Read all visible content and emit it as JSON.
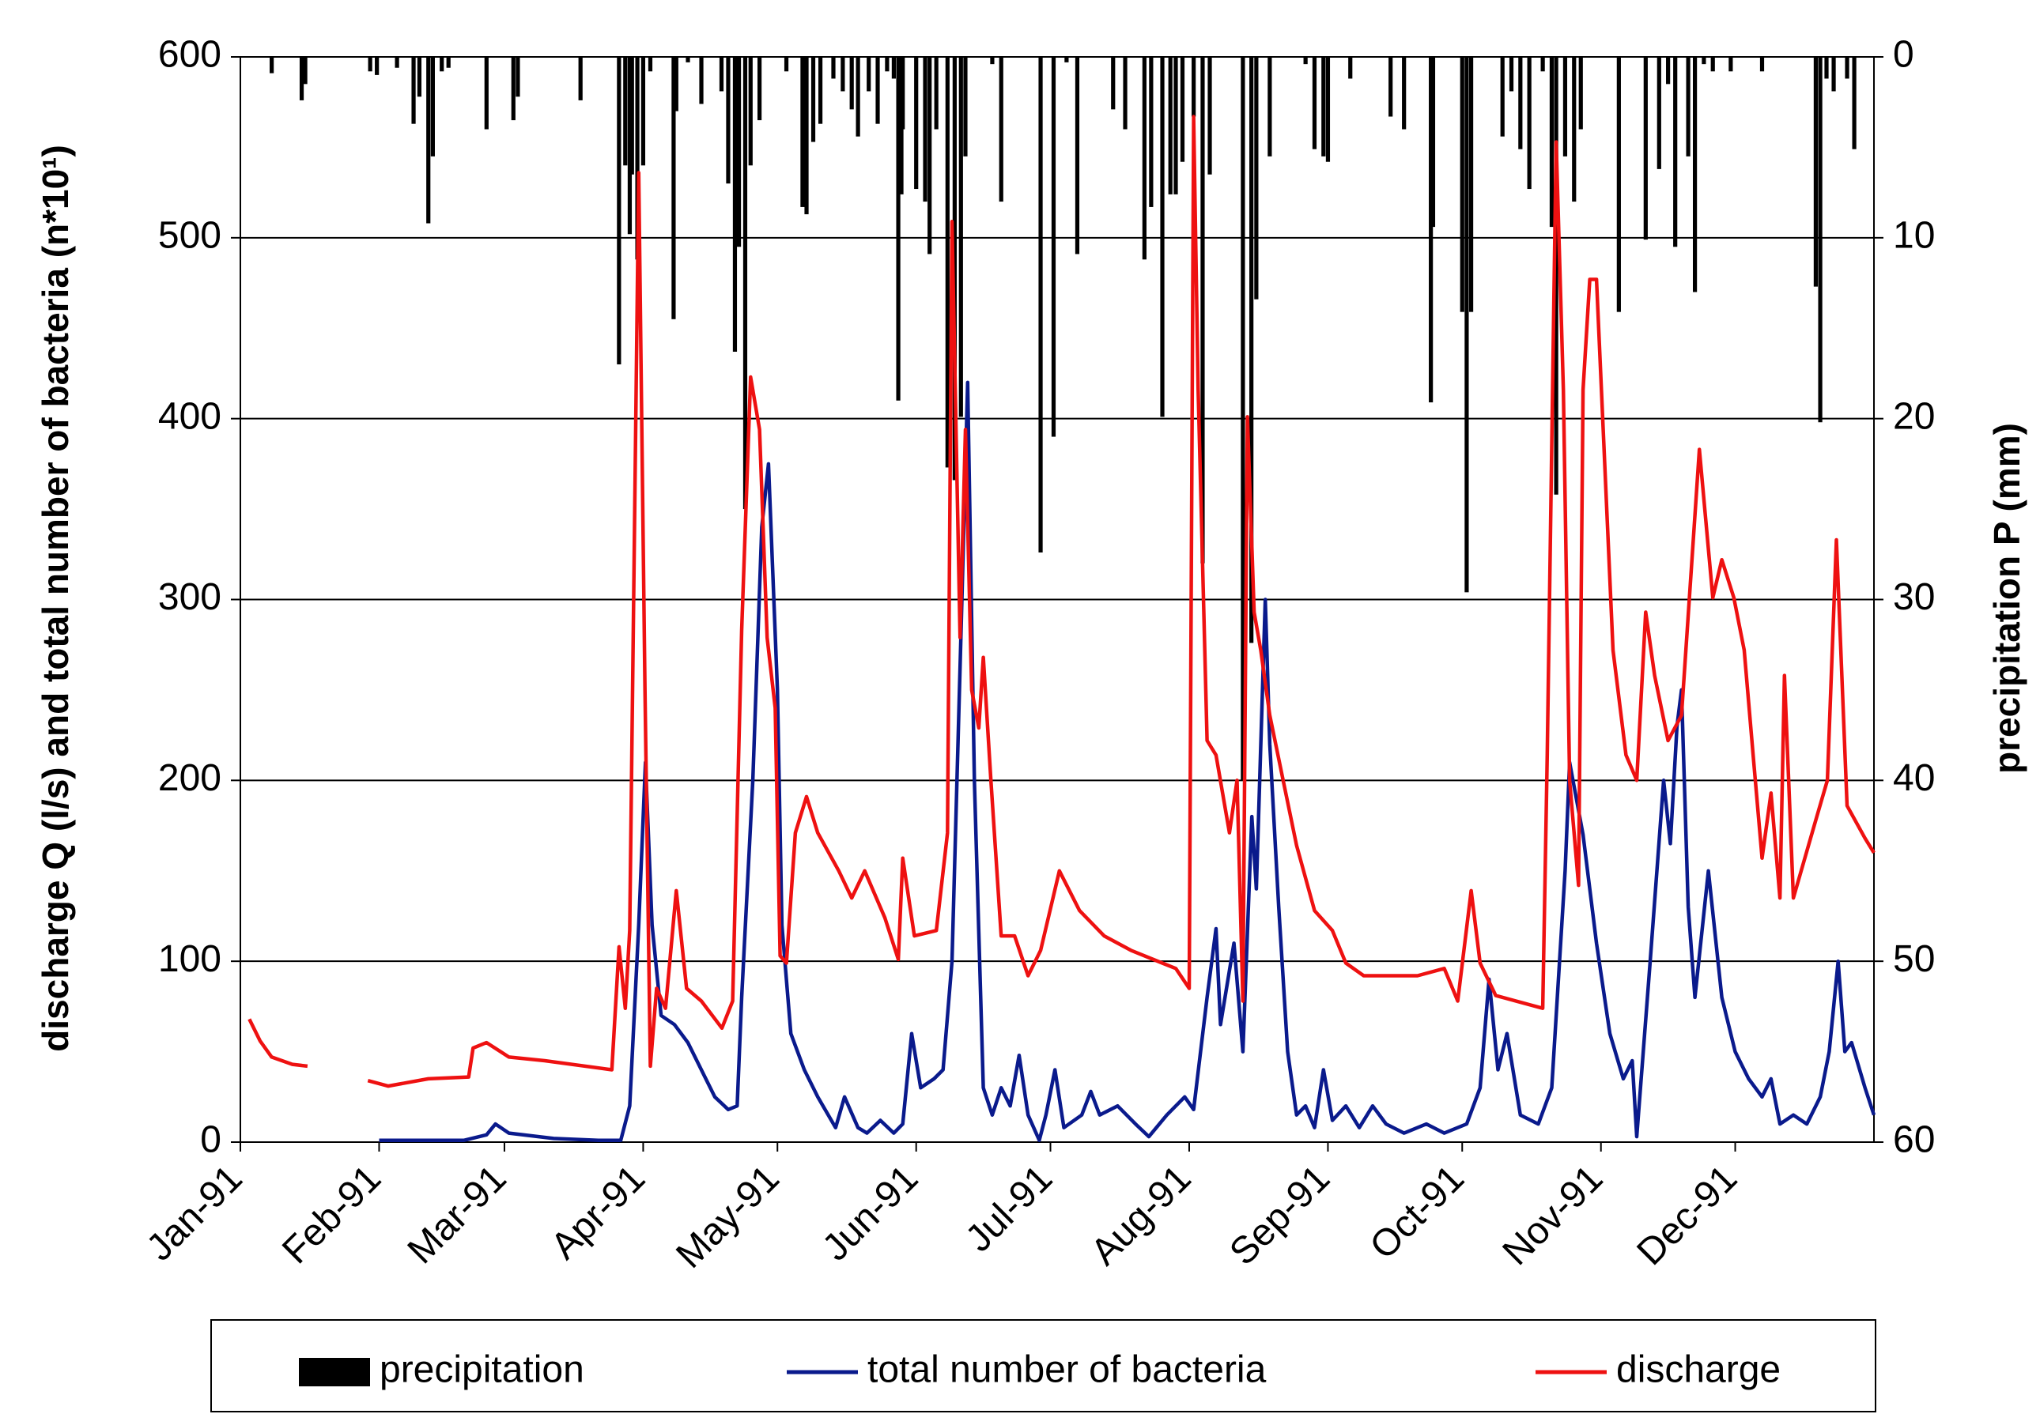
{
  "chart_data": {
    "type": "combo",
    "y_label": "discharge Q (l/s) and total number of bacteria (n*10¹)",
    "y2_label": "precipitation P (mm)",
    "xlim": [
      0,
      365
    ],
    "xticks": [
      {
        "value": 0,
        "label": "Jan-91"
      },
      {
        "value": 31,
        "label": "Feb-91"
      },
      {
        "value": 59,
        "label": "Mar-91"
      },
      {
        "value": 90,
        "label": "Apr-91"
      },
      {
        "value": 120,
        "label": "May-91"
      },
      {
        "value": 151,
        "label": "Jun-91"
      },
      {
        "value": 181,
        "label": "Jul-91"
      },
      {
        "value": 212,
        "label": "Aug-91"
      },
      {
        "value": 243,
        "label": "Sep-91"
      },
      {
        "value": 273,
        "label": "Oct-91"
      },
      {
        "value": 304,
        "label": "Nov-91"
      },
      {
        "value": 334,
        "label": "Dec-91"
      }
    ],
    "ylim": [
      0,
      600
    ],
    "yticks": [
      0,
      100,
      200,
      300,
      400,
      500,
      600
    ],
    "y2lim": [
      60,
      0
    ],
    "y2ticks": [
      0,
      10,
      20,
      30,
      40,
      50,
      60
    ],
    "grid": true,
    "legend": "bottom",
    "series": [
      {
        "name": "precipitation",
        "type": "bar",
        "axis": "y2",
        "color": "#000000",
        "x": [
          7,
          13.7,
          14.5,
          29,
          30.5,
          35,
          38.7,
          40,
          42,
          43,
          45,
          46.5,
          55,
          61,
          62,
          76,
          84.6,
          86,
          87,
          87.5,
          88.7,
          90,
          91.6,
          96.8,
          97.4,
          100,
          103,
          107.5,
          109,
          110.5,
          111.4,
          112.8,
          114,
          116,
          122,
          125.6,
          126.5,
          128,
          129.6,
          132.5,
          134.6,
          136.6,
          138,
          140.4,
          142.4,
          144.5,
          146,
          147,
          147.7,
          148,
          151,
          153,
          154,
          155.5,
          158,
          159.6,
          161,
          162,
          168,
          170,
          178.8,
          181.7,
          184.6,
          187,
          195,
          197.7,
          202,
          203.5,
          206,
          207.8,
          209,
          210.5,
          213,
          215,
          216.6,
          224,
          225.9,
          227,
          230,
          238,
          240,
          242,
          243,
          248,
          257,
          260,
          266,
          266.5,
          273,
          274,
          275,
          282,
          284,
          286,
          288,
          291,
          293,
          294,
          296,
          298,
          299.5,
          308,
          314,
          317,
          319,
          320.6,
          323.5,
          325,
          327,
          329,
          333,
          340,
          352,
          353,
          354.4,
          356,
          359,
          360.6
        ],
        "values": [
          0.9,
          2.4,
          1.5,
          0.8,
          1,
          0.6,
          3.7,
          2.2,
          9.2,
          5.5,
          0.8,
          0.6,
          4,
          3.5,
          2.2,
          2.4,
          17,
          6,
          9.8,
          6.5,
          11.2,
          6,
          0.8,
          14.5,
          3,
          0.3,
          2.6,
          1.9,
          7,
          16.3,
          10.5,
          25,
          6,
          3.5,
          0.8,
          8.3,
          8.7,
          4.7,
          3.7,
          1.2,
          1.9,
          2.9,
          4.4,
          1.9,
          3.7,
          0.8,
          1.2,
          19,
          7.6,
          4,
          7.3,
          8,
          10.9,
          4,
          22.7,
          23.4,
          19.9,
          5.5,
          0.4,
          8,
          27.4,
          21,
          0.3,
          10.9,
          2.9,
          4,
          11.2,
          8.3,
          19.9,
          7.6,
          7.6,
          5.8,
          3.3,
          28,
          6.5,
          40,
          32.4,
          13.4,
          5.5,
          0.4,
          5.1,
          5.5,
          5.8,
          1.2,
          3.3,
          4,
          19.1,
          9.4,
          14.1,
          29.6,
          14.1,
          4.4,
          1.9,
          5.1,
          7.3,
          0.8,
          9.4,
          24.2,
          5.5,
          8,
          4,
          14.1,
          10.1,
          6.2,
          1.5,
          10.5,
          5.5,
          13,
          0.4,
          0.8,
          0.8,
          0.8,
          12.7,
          20.2,
          1.2,
          1.9,
          1.2,
          5.1
        ]
      },
      {
        "name": "total number of bacteria",
        "type": "line",
        "color": "#0a1a8c",
        "x": [
          31,
          50,
          55,
          57,
          60,
          70,
          80,
          85,
          87,
          89,
          90.5,
          92,
          94,
          97,
          100,
          103,
          106,
          109,
          111,
          112,
          114.5,
          116.5,
          118,
          120,
          121,
          123,
          126,
          129,
          133,
          135,
          138,
          140,
          143,
          146,
          148,
          150,
          152,
          155,
          157,
          159,
          161,
          162.5,
          164,
          166,
          168,
          170,
          172,
          174,
          176,
          178.5,
          180,
          182,
          184,
          188,
          190,
          192,
          196,
          200,
          203,
          207,
          211,
          213,
          216,
          218,
          219,
          222,
          224,
          226,
          227,
          229,
          230,
          232,
          234,
          236,
          238,
          240,
          242,
          244,
          247,
          250,
          253,
          256,
          260,
          265,
          269,
          274,
          277,
          279,
          281,
          283,
          286,
          290,
          293,
          296,
          297,
          300,
          303,
          306,
          309,
          311,
          312,
          315,
          318,
          319.5,
          321,
          322,
          323.5,
          325,
          328,
          331,
          334,
          337,
          340,
          342,
          344,
          347,
          350,
          353,
          355,
          357,
          358.5,
          360,
          363,
          365
        ],
        "values": [
          1,
          1,
          4,
          10,
          5,
          2,
          1,
          1,
          20,
          120,
          210,
          120,
          70,
          65,
          55,
          40,
          25,
          18,
          20,
          80,
          200,
          340,
          375,
          250,
          120,
          60,
          40,
          25,
          8,
          25,
          8,
          5,
          12,
          5,
          10,
          60,
          30,
          35,
          40,
          100,
          280,
          420,
          200,
          30,
          15,
          30,
          20,
          48,
          15,
          1,
          15,
          40,
          8,
          15,
          28,
          15,
          20,
          10,
          3,
          15,
          25,
          18,
          80,
          118,
          65,
          110,
          50,
          180,
          140,
          300,
          220,
          130,
          50,
          15,
          20,
          8,
          40,
          12,
          20,
          8,
          20,
          10,
          5,
          10,
          5,
          10,
          30,
          90,
          40,
          60,
          15,
          10,
          30,
          150,
          210,
          170,
          110,
          60,
          35,
          45,
          3,
          100,
          200,
          165,
          230,
          250,
          130,
          80,
          150,
          80,
          50,
          35,
          25,
          35,
          10,
          15,
          10,
          25,
          50,
          100,
          50,
          55,
          30,
          15
        ]
      },
      {
        "name": "discharge",
        "type": "line",
        "color": "#ee1111",
        "x": [
          2,
          4.4,
          7,
          11.6,
          15,
          22,
          28.5,
          33,
          42,
          51,
          52,
          55,
          60,
          68,
          83,
          84.6,
          86,
          87,
          89,
          90.4,
          91.6,
          93,
          95,
          97.4,
          99.7,
          103,
          107.6,
          110,
          112,
          114,
          116,
          117.7,
          119.5,
          120.6,
          122,
          124,
          126.5,
          129,
          133.7,
          136.6,
          139.5,
          144,
          147,
          148,
          150.6,
          155.5,
          158,
          159,
          160.8,
          162,
          163.4,
          165,
          166,
          167.7,
          170,
          173,
          176,
          178.8,
          183,
          187.5,
          193,
          199,
          206,
          209,
          212,
          213,
          214,
          216,
          218,
          221,
          222.7,
          224,
          225,
          226.5,
          228,
          230,
          233,
          236,
          240,
          244,
          247,
          251,
          263,
          269,
          272,
          275,
          277,
          280.5,
          291,
          292,
          294,
          295.6,
          297,
          299,
          300,
          301.5,
          303,
          306.7,
          309.6,
          312,
          314,
          316,
          319,
          322,
          326,
          329,
          331,
          333.7,
          336,
          338,
          340,
          342,
          344,
          345,
          347,
          352,
          354.6,
          356.6,
          359,
          363,
          365
        ],
        "values": [
          68,
          56,
          47,
          43,
          42,
          null,
          34,
          31,
          35,
          36,
          52,
          55,
          47,
          45,
          40,
          108,
          74,
          117,
          536,
          250,
          42,
          85,
          74,
          139,
          85,
          78,
          63,
          78,
          283,
          423,
          394,
          279,
          240,
          103,
          99,
          171,
          191,
          171,
          150,
          135,
          150,
          124,
          101,
          157,
          114,
          117,
          171,
          509,
          279,
          394,
          250,
          229,
          268,
          200,
          114,
          114,
          92,
          106,
          150,
          128,
          114,
          106,
          99,
          96,
          85,
          567,
          416,
          222,
          214,
          171,
          200,
          78,
          401,
          293,
          272,
          236,
          200,
          164,
          128,
          117,
          99,
          92,
          92,
          96,
          78,
          139,
          99,
          81,
          74,
          214,
          553,
          416,
          200,
          142,
          416,
          477,
          477,
          272,
          214,
          200,
          293,
          258,
          222,
          236,
          383,
          301,
          322,
          301,
          272,
          214,
          157,
          193,
          135,
          258,
          135,
          178,
          200,
          333,
          186,
          168,
          160
        ]
      }
    ]
  }
}
